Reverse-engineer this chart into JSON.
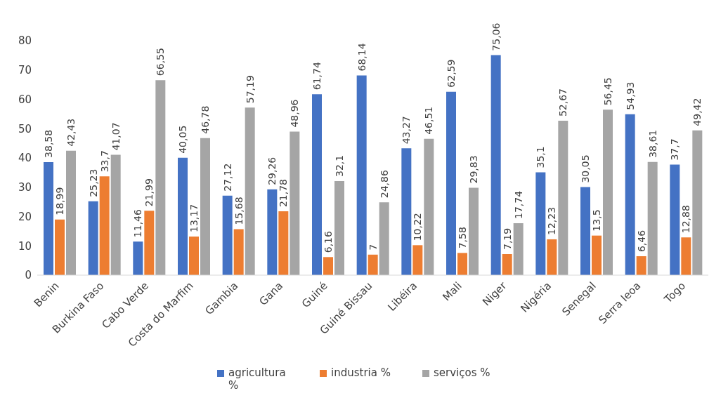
{
  "chart_data": {
    "type": "bar",
    "categories": [
      "Benin",
      "Burkina Faso",
      "Cabo Verde",
      "Costa do Marfim",
      "Gambia",
      "Gana",
      "Guiné",
      "Guiné Bissau",
      "Libéira",
      "Mali",
      "Niger",
      "Nigéria",
      "Senegal",
      "Serra leoa",
      "Togo"
    ],
    "series": [
      {
        "name": "agricultura %",
        "color": "#4472c4",
        "values": [
          38.58,
          25.23,
          11.46,
          40.05,
          27.12,
          29.26,
          61.74,
          68.14,
          43.27,
          62.59,
          75.06,
          35.1,
          30.05,
          54.93,
          37.7
        ],
        "value_labels": [
          "38,58",
          "25,23",
          "11,46",
          "40,05",
          "27,12",
          "29,26",
          "61,74",
          "68,14",
          "43,27",
          "62,59",
          "75,06",
          "35,1",
          "30,05",
          "54,93",
          "37,7"
        ]
      },
      {
        "name": "industria %",
        "color": "#ed7d31",
        "values": [
          18.99,
          33.7,
          21.99,
          13.17,
          15.68,
          21.78,
          6.16,
          7,
          10.22,
          7.58,
          7.19,
          12.23,
          13.5,
          6.46,
          12.88
        ],
        "value_labels": [
          "18,99",
          "33,7",
          "21,99",
          "13,17",
          "15,68",
          "21,78",
          "6,16",
          "7",
          "10,22",
          "7,58",
          "7,19",
          "12,23",
          "13,5",
          "6,46",
          "12,88"
        ]
      },
      {
        "name": "serviços %",
        "color": "#a5a5a5",
        "values": [
          42.43,
          41.07,
          66.55,
          46.78,
          57.19,
          48.96,
          32.1,
          24.86,
          46.51,
          29.83,
          17.74,
          52.67,
          56.45,
          38.61,
          49.42
        ],
        "value_labels": [
          "42,43",
          "41,07",
          "66,55",
          "46,78",
          "57,19",
          "48,96",
          "32,1",
          "24,86",
          "46,51",
          "29,83",
          "17,74",
          "52,67",
          "56,45",
          "38,61",
          "49,42"
        ]
      }
    ],
    "ylim": [
      0,
      80
    ],
    "yticks": [
      0,
      10,
      20,
      30,
      40,
      50,
      60,
      70,
      80
    ],
    "grid": false,
    "legend": "bottom"
  }
}
